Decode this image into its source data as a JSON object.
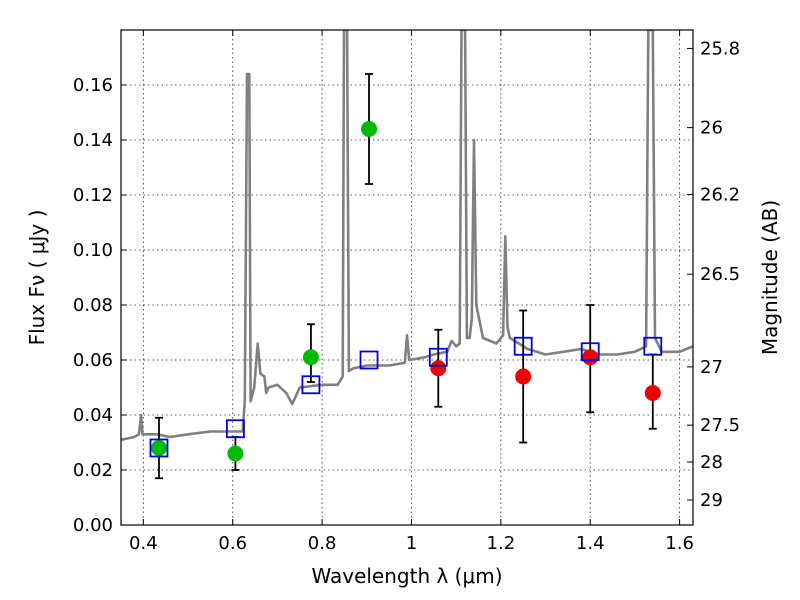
{
  "chart_data": {
    "type": "scatter",
    "title": "",
    "xlabel": "Wavelength  λ (μm)",
    "ylabel": "Flux  Fν  ( μJy )",
    "ylabel_right": "Magnitude (AB)",
    "xlim": [
      0.35,
      1.63
    ],
    "ylim": [
      0.0,
      0.18
    ],
    "grid": true,
    "legend": null,
    "x_ticks": [
      0.4,
      0.6,
      0.8,
      1.0,
      1.2,
      1.4,
      1.6
    ],
    "x_tick_labels": [
      "0.4",
      "0.6",
      "0.8",
      "1",
      "1.2",
      "1.4",
      "1.6"
    ],
    "y_ticks": [
      0.0,
      0.02,
      0.04,
      0.06,
      0.08,
      0.1,
      0.12,
      0.14,
      0.16
    ],
    "y_tick_labels": [
      "0.00",
      "0.02",
      "0.04",
      "0.06",
      "0.08",
      "0.10",
      "0.12",
      "0.14",
      "0.16"
    ],
    "right_ticks": [
      {
        "label": "25.8",
        "flux": 0.1733
      },
      {
        "label": "26",
        "flux": 0.1445
      },
      {
        "label": "26.2",
        "flux": 0.1202
      },
      {
        "label": "26.5",
        "flux": 0.0912
      },
      {
        "label": "27",
        "flux": 0.0575
      },
      {
        "label": "27.5",
        "flux": 0.0363
      },
      {
        "label": "28",
        "flux": 0.0229
      },
      {
        "label": "29",
        "flux": 0.0091
      }
    ],
    "colors": {
      "model": "#808080",
      "green": "#00bb00",
      "red": "#ee0000",
      "blue": "#0000dd",
      "errorbar": "#000000"
    },
    "series": [
      {
        "marker": "circle",
        "color": "green",
        "points": [
          {
            "x": 0.435,
            "y": 0.028,
            "yerr": [
              0.017,
              0.039
            ]
          },
          {
            "x": 0.606,
            "y": 0.026,
            "yerr": [
              0.02,
              0.032
            ]
          },
          {
            "x": 0.775,
            "y": 0.061,
            "yerr": [
              0.052,
              0.073
            ]
          },
          {
            "x": 0.905,
            "y": 0.144,
            "yerr": [
              0.124,
              0.164
            ]
          }
        ]
      },
      {
        "marker": "circle",
        "color": "red",
        "points": [
          {
            "x": 1.06,
            "y": 0.057,
            "yerr": [
              0.043,
              0.071
            ]
          },
          {
            "x": 1.25,
            "y": 0.054,
            "yerr": [
              0.03,
              0.078
            ]
          },
          {
            "x": 1.4,
            "y": 0.061,
            "yerr": [
              0.041,
              0.08
            ]
          },
          {
            "x": 1.54,
            "y": 0.048,
            "yerr": [
              0.035,
              0.062
            ]
          }
        ]
      },
      {
        "marker": "open-square",
        "color": "blue",
        "points": [
          {
            "x": 0.435,
            "y": 0.028
          },
          {
            "x": 0.606,
            "y": 0.035
          },
          {
            "x": 0.775,
            "y": 0.051
          },
          {
            "x": 0.905,
            "y": 0.06
          },
          {
            "x": 1.06,
            "y": 0.061
          },
          {
            "x": 1.25,
            "y": 0.065
          },
          {
            "x": 1.4,
            "y": 0.063
          },
          {
            "x": 1.54,
            "y": 0.065
          }
        ]
      },
      {
        "marker": "line",
        "color": "model",
        "points": [
          {
            "x": 0.35,
            "y": 0.031
          },
          {
            "x": 0.38,
            "y": 0.032
          },
          {
            "x": 0.39,
            "y": 0.033
          },
          {
            "x": 0.395,
            "y": 0.04
          },
          {
            "x": 0.398,
            "y": 0.033
          },
          {
            "x": 0.43,
            "y": 0.033
          },
          {
            "x": 0.46,
            "y": 0.032
          },
          {
            "x": 0.5,
            "y": 0.033
          },
          {
            "x": 0.55,
            "y": 0.034
          },
          {
            "x": 0.6,
            "y": 0.034
          },
          {
            "x": 0.622,
            "y": 0.034
          },
          {
            "x": 0.627,
            "y": 0.045
          },
          {
            "x": 0.632,
            "y": 0.164
          },
          {
            "x": 0.637,
            "y": 0.164
          },
          {
            "x": 0.64,
            "y": 0.045
          },
          {
            "x": 0.648,
            "y": 0.05
          },
          {
            "x": 0.656,
            "y": 0.066
          },
          {
            "x": 0.662,
            "y": 0.055
          },
          {
            "x": 0.671,
            "y": 0.054
          },
          {
            "x": 0.675,
            "y": 0.048
          },
          {
            "x": 0.68,
            "y": 0.05
          },
          {
            "x": 0.7,
            "y": 0.051
          },
          {
            "x": 0.72,
            "y": 0.048
          },
          {
            "x": 0.733,
            "y": 0.044
          },
          {
            "x": 0.75,
            "y": 0.05
          },
          {
            "x": 0.8,
            "y": 0.051
          },
          {
            "x": 0.835,
            "y": 0.051
          },
          {
            "x": 0.846,
            "y": 0.054
          },
          {
            "x": 0.849,
            "y": 0.18
          },
          {
            "x": 0.856,
            "y": 0.18
          },
          {
            "x": 0.86,
            "y": 0.056
          },
          {
            "x": 0.87,
            "y": 0.057
          },
          {
            "x": 0.9,
            "y": 0.058
          },
          {
            "x": 0.95,
            "y": 0.058
          },
          {
            "x": 0.985,
            "y": 0.059
          },
          {
            "x": 0.99,
            "y": 0.069
          },
          {
            "x": 0.995,
            "y": 0.06
          },
          {
            "x": 1.03,
            "y": 0.061
          },
          {
            "x": 1.05,
            "y": 0.062
          },
          {
            "x": 1.08,
            "y": 0.063
          },
          {
            "x": 1.09,
            "y": 0.067
          },
          {
            "x": 1.1,
            "y": 0.065
          },
          {
            "x": 1.108,
            "y": 0.066
          },
          {
            "x": 1.112,
            "y": 0.18
          },
          {
            "x": 1.12,
            "y": 0.18
          },
          {
            "x": 1.124,
            "y": 0.068
          },
          {
            "x": 1.13,
            "y": 0.068
          },
          {
            "x": 1.135,
            "y": 0.075
          },
          {
            "x": 1.14,
            "y": 0.14
          },
          {
            "x": 1.145,
            "y": 0.08
          },
          {
            "x": 1.16,
            "y": 0.068
          },
          {
            "x": 1.19,
            "y": 0.066
          },
          {
            "x": 1.205,
            "y": 0.069
          },
          {
            "x": 1.21,
            "y": 0.105
          },
          {
            "x": 1.215,
            "y": 0.072
          },
          {
            "x": 1.22,
            "y": 0.068
          },
          {
            "x": 1.26,
            "y": 0.064
          },
          {
            "x": 1.3,
            "y": 0.062
          },
          {
            "x": 1.34,
            "y": 0.063
          },
          {
            "x": 1.38,
            "y": 0.064
          },
          {
            "x": 1.42,
            "y": 0.062
          },
          {
            "x": 1.46,
            "y": 0.062
          },
          {
            "x": 1.5,
            "y": 0.063
          },
          {
            "x": 1.525,
            "y": 0.065
          },
          {
            "x": 1.53,
            "y": 0.18
          },
          {
            "x": 1.54,
            "y": 0.18
          },
          {
            "x": 1.545,
            "y": 0.068
          },
          {
            "x": 1.56,
            "y": 0.063
          },
          {
            "x": 1.58,
            "y": 0.063
          },
          {
            "x": 1.6,
            "y": 0.063
          },
          {
            "x": 1.63,
            "y": 0.065
          }
        ]
      }
    ]
  }
}
